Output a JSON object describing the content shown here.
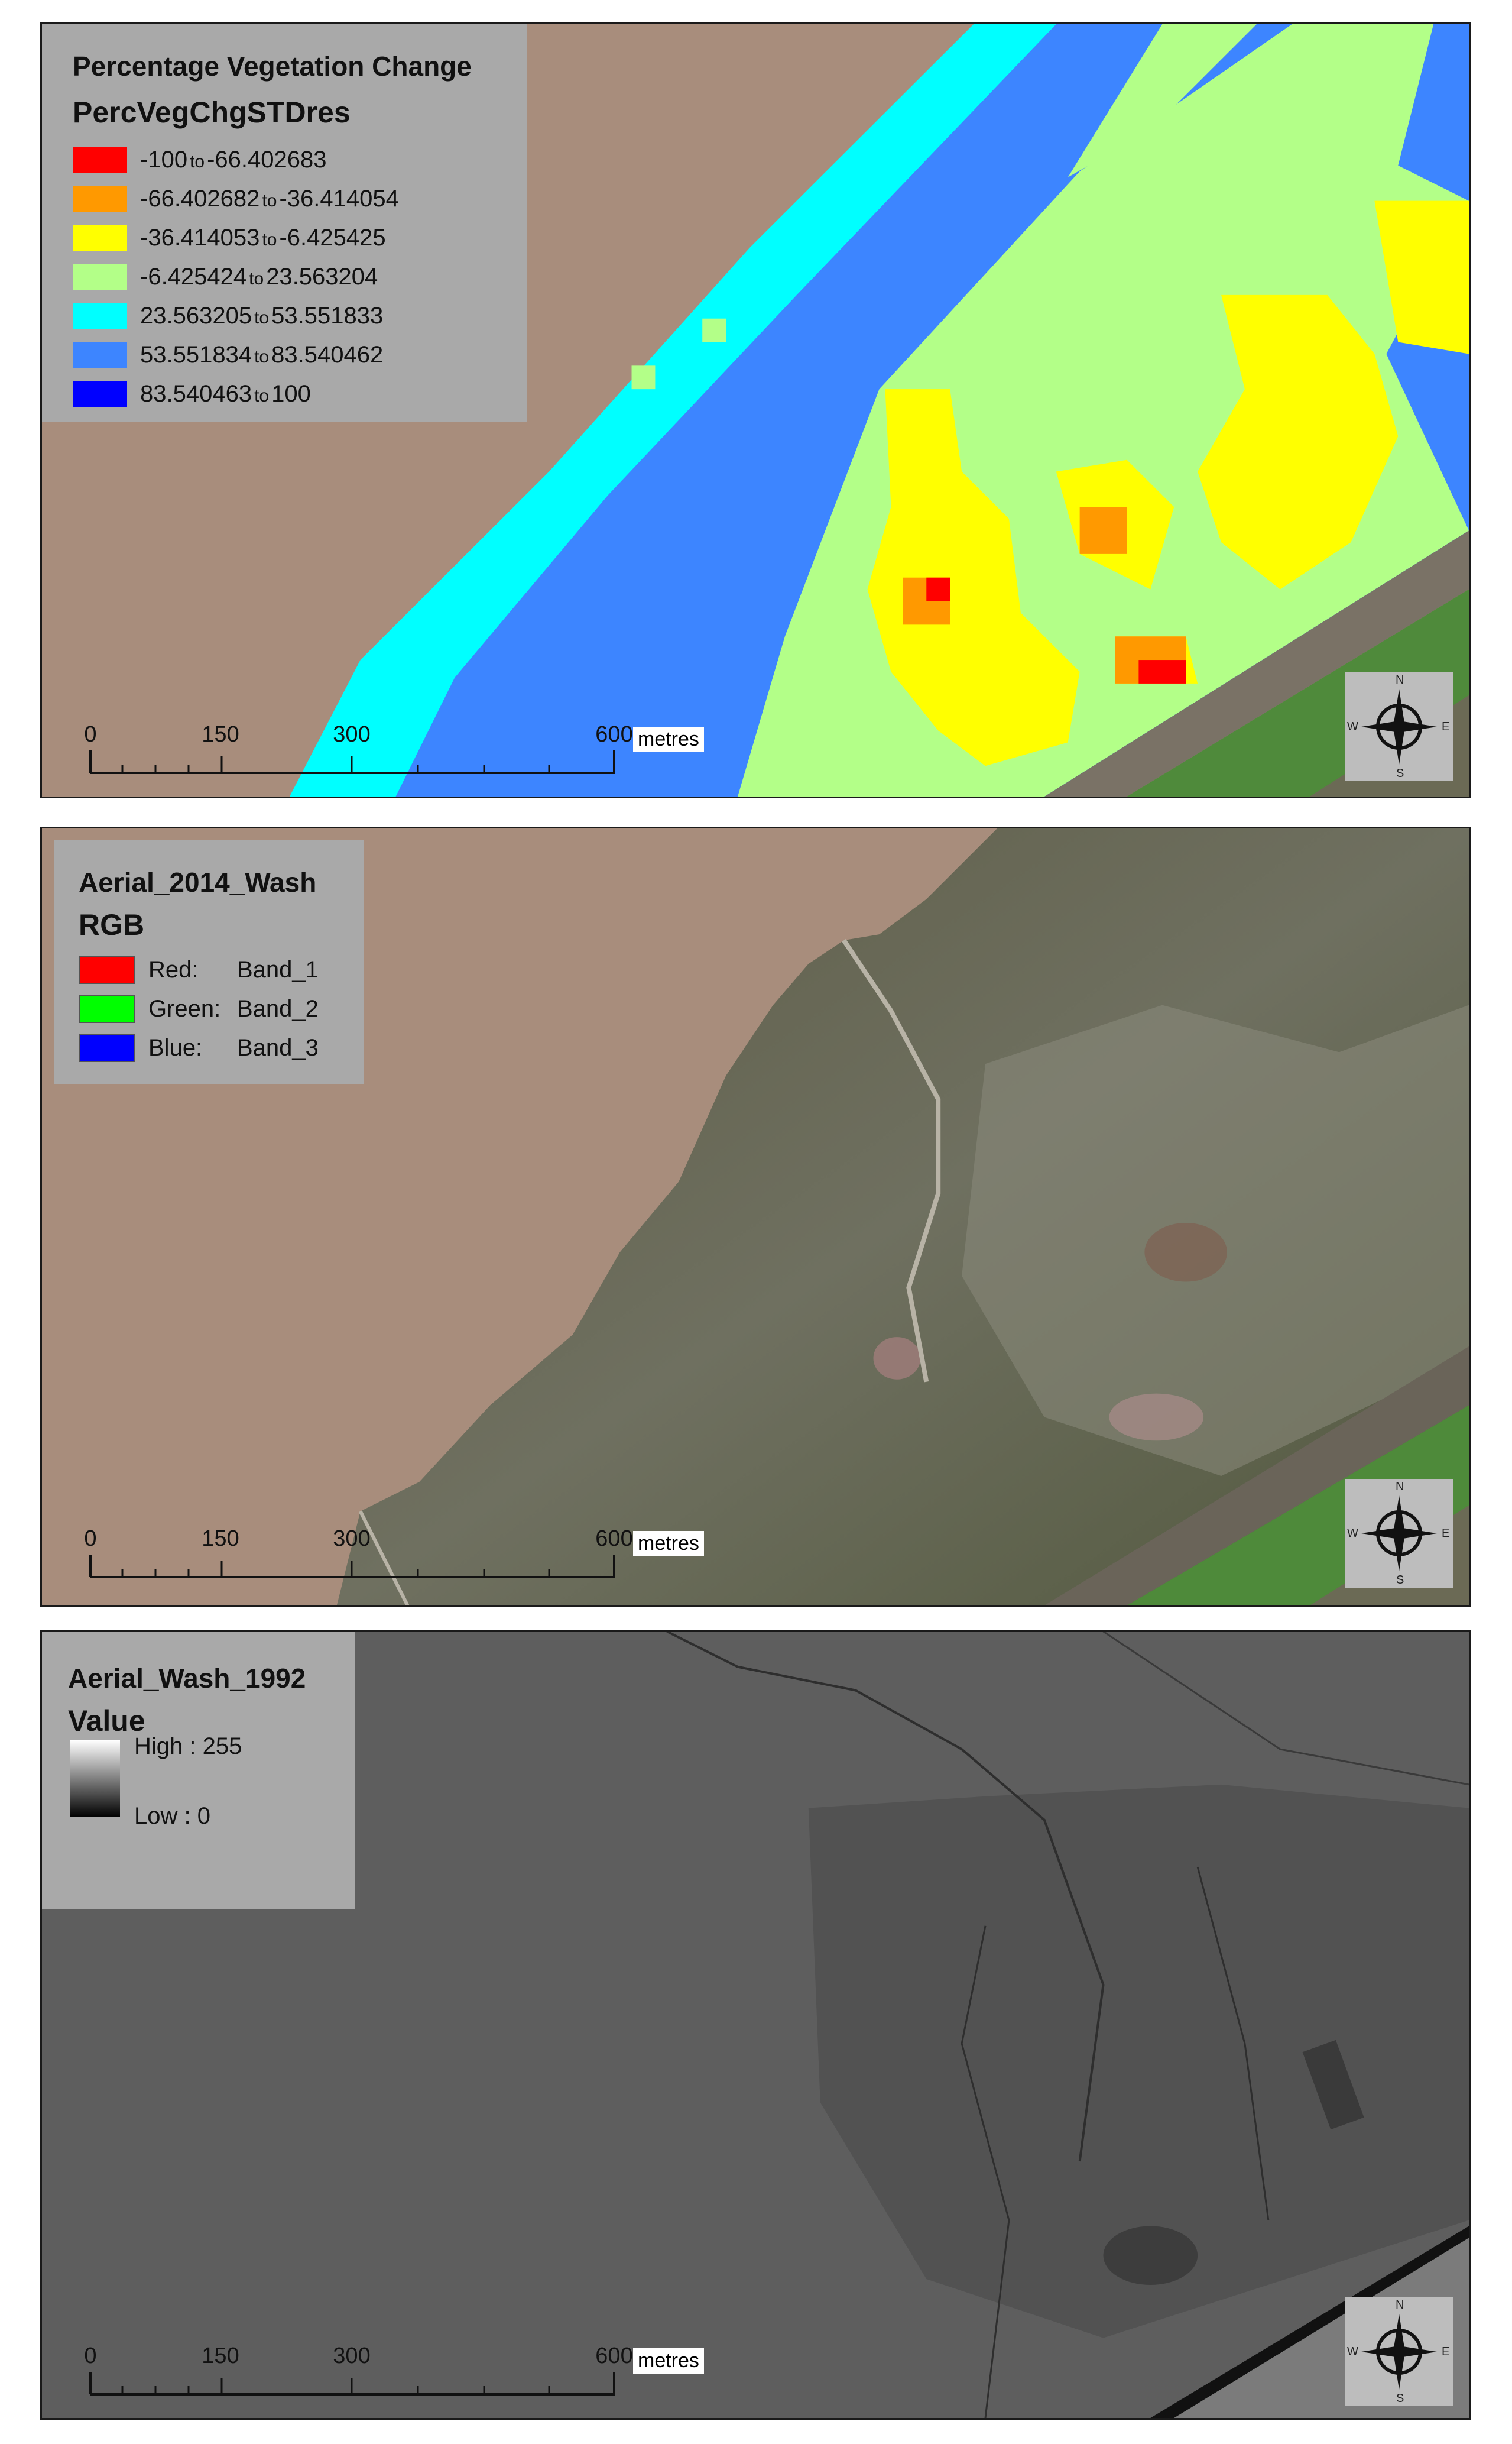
{
  "panels": [
    {
      "legend": {
        "title": "Percentage Vegetation Change",
        "subtitle": "PercVegChgSTDres",
        "classes": [
          {
            "from": "-100",
            "to": "-66.402683",
            "color": "#ff0000"
          },
          {
            "from": "-66.402682",
            "to": "-36.414054",
            "color": "#ff9900"
          },
          {
            "from": "-36.414053",
            "to": "-6.425425",
            "color": "#ffff00"
          },
          {
            "from": "-6.425424",
            "to": "23.563204",
            "color": "#b3ff88"
          },
          {
            "from": "23.563205",
            "to": "53.551833",
            "color": "#00ffff"
          },
          {
            "from": "53.551834",
            "to": "83.540462",
            "color": "#3d85ff"
          },
          {
            "from": "83.540463",
            "to": "100",
            "color": "#0000ff"
          }
        ]
      }
    },
    {
      "legend": {
        "title": "Aerial_2014_Wash",
        "subtitle": "RGB",
        "bands": [
          {
            "label": "Red:",
            "band": "Band_1",
            "color": "#ff0000"
          },
          {
            "label": "Green:",
            "band": "Band_2",
            "color": "#00ff00"
          },
          {
            "label": "Blue:",
            "band": "Band_3",
            "color": "#0000ff"
          }
        ]
      }
    },
    {
      "legend": {
        "title": "Aerial_Wash_1992",
        "subtitle": "Value",
        "high": "High : 255",
        "low": "Low : 0"
      }
    }
  ],
  "scalebar": {
    "ticks": [
      "0",
      "150",
      "300",
      "600"
    ],
    "unit": "metres"
  },
  "compass": {
    "n": "N",
    "s": "S",
    "e": "E",
    "w": "W"
  },
  "colors": {
    "mudflat": "#a88d7c",
    "saltmarsh_dark": "#4a4f3a",
    "saltmarsh_light": "#8e8c78",
    "greyscale_bg": "#5b5b5b",
    "grass": "#4e8a3a"
  }
}
